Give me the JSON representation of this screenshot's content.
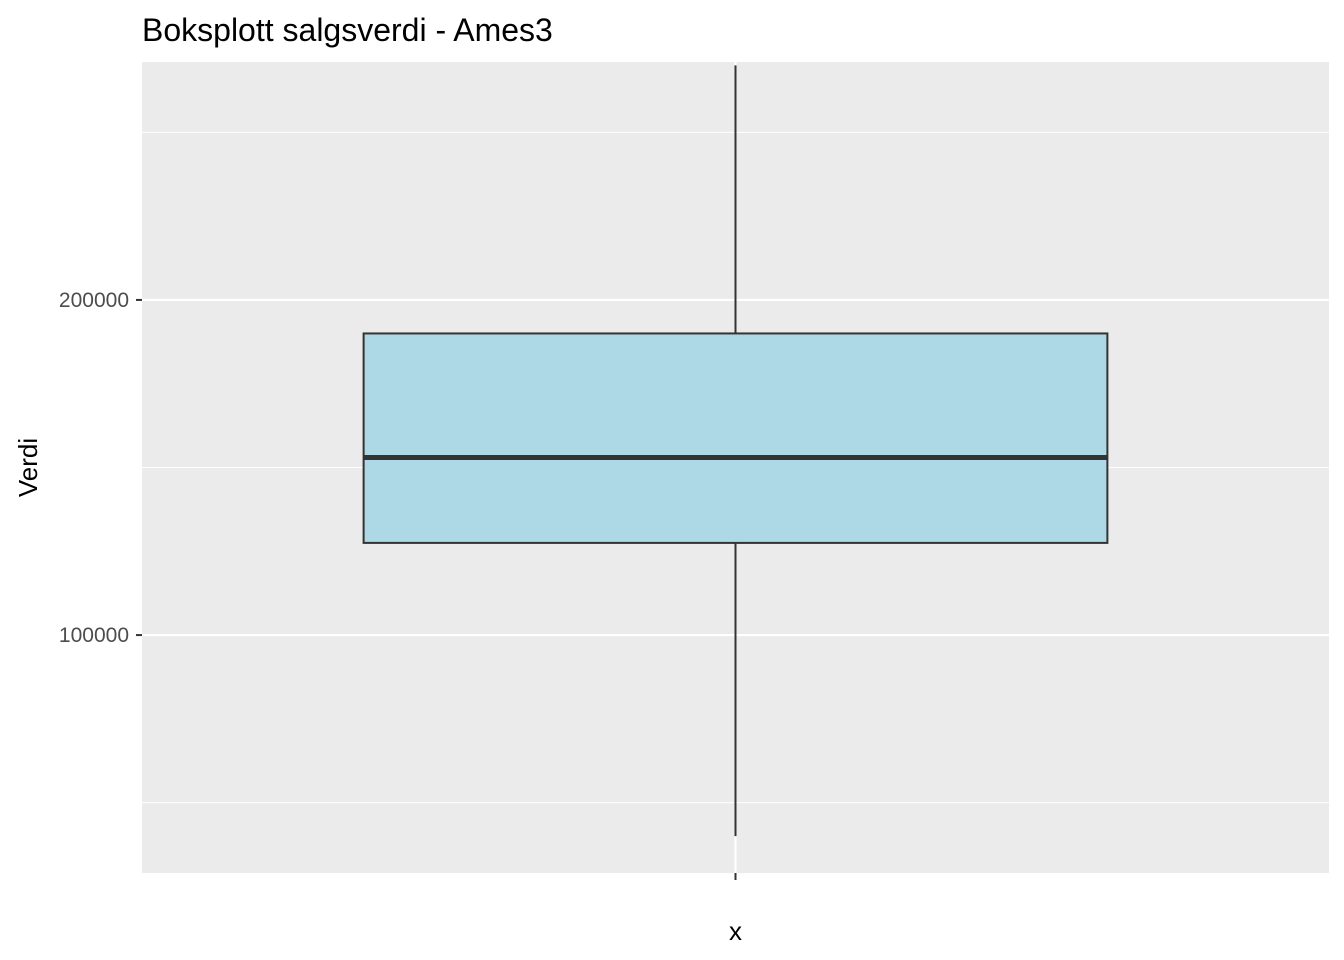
{
  "chart_data": {
    "type": "boxplot",
    "title": "Boksplott salgsverdi - Ames3",
    "xlabel": "x",
    "ylabel": "Verdi",
    "categories": [
      ""
    ],
    "box": {
      "min": 40000,
      "q1": 127500,
      "median": 153000,
      "q3": 190000,
      "max": 270000
    },
    "ylim": [
      29000,
      271000
    ],
    "yticks": [
      100000,
      200000
    ],
    "ytick_labels": [
      "100000",
      "200000"
    ],
    "grid": true,
    "legend": "none",
    "colors": {
      "panel_background": "#EBEBEB",
      "grid": "#FFFFFF",
      "box_fill": "#ADD8E6",
      "box_stroke": "#333333",
      "median_line": "#333333",
      "whisker": "#333333",
      "tick_label": "#4D4D4D",
      "tick_mark": "#333333"
    }
  }
}
